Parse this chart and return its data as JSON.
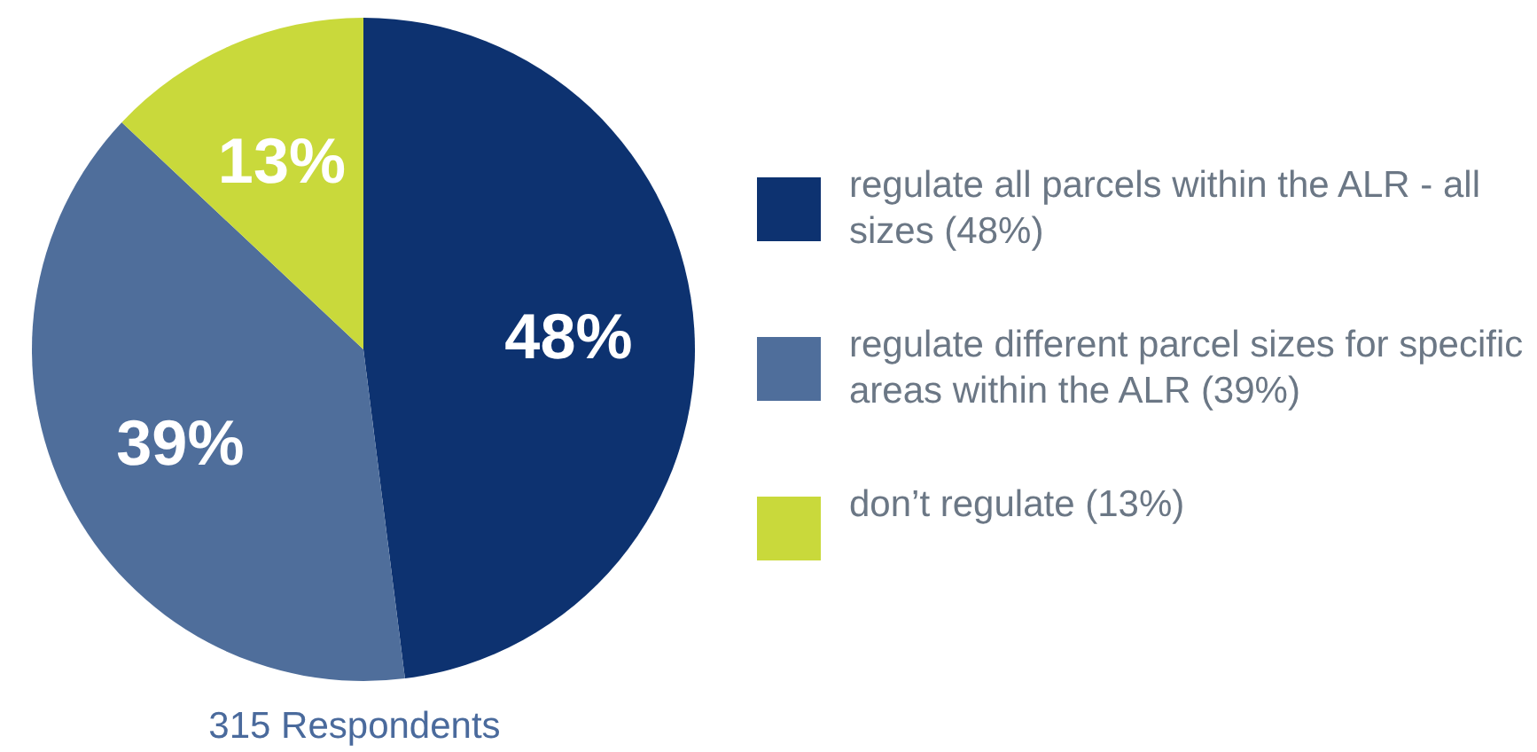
{
  "chart_data": {
    "type": "pie",
    "categories": [
      "regulate all parcels within the ALR - all sizes (48%)",
      "regulate different parcel sizes for specific areas within the ALR (39%)",
      "don’t regulate (13%)"
    ],
    "values": [
      48,
      39,
      13
    ],
    "colors": [
      "#0d3270",
      "#4f6e9b",
      "#c9d93b"
    ],
    "value_labels": [
      "48%",
      "39%",
      "13%"
    ],
    "legend": "right",
    "annotations": [
      "315 Respondents"
    ]
  }
}
